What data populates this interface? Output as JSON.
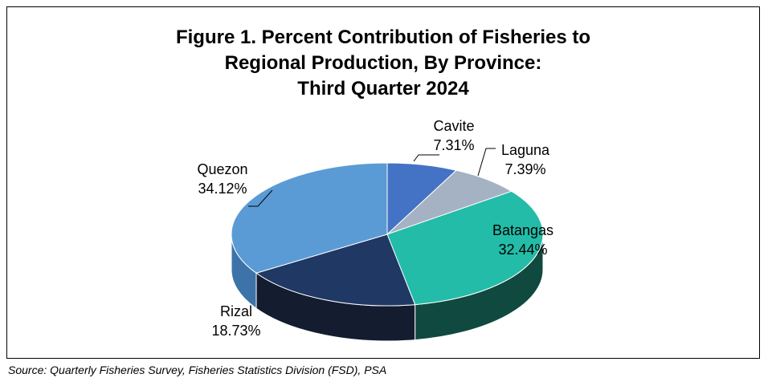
{
  "chart_data": {
    "type": "pie",
    "title_lines": [
      "Figure 1. Percent Contribution of Fisheries to",
      "Regional Production, By Province:",
      "Third Quarter 2024"
    ],
    "slices": [
      {
        "name": "Cavite",
        "value": 7.31,
        "label": "7.31%",
        "color": "#4472C4",
        "side": "#2F5597"
      },
      {
        "name": "Laguna",
        "value": 7.39,
        "label": "7.39%",
        "color": "#A5B2C3",
        "side": "#6E7B8C"
      },
      {
        "name": "Batangas",
        "value": 32.44,
        "label": "32.44%",
        "color": "#23BCA8",
        "side": "#10493F"
      },
      {
        "name": "Rizal",
        "value": 18.73,
        "label": "18.73%",
        "color": "#1F3864",
        "side": "#141C30"
      },
      {
        "name": "Quezon",
        "value": 34.12,
        "label": "34.12%",
        "color": "#5B9BD5",
        "side": "#3D73A8"
      }
    ],
    "style": "3d-pie",
    "legend": "none"
  },
  "source": "Source: Quarterly Fisheries Survey, Fisheries Statistics Division (FSD), PSA"
}
